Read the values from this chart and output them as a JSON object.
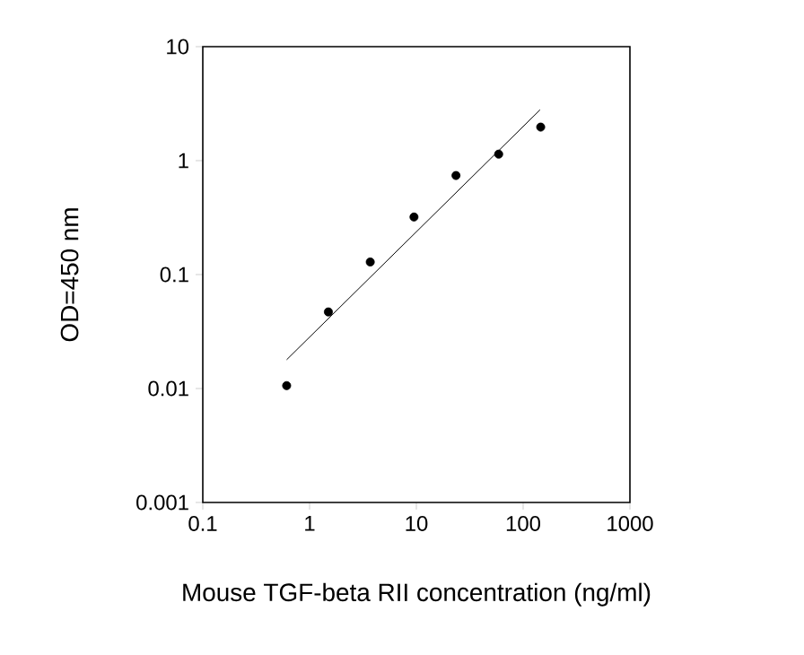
{
  "chart_data": {
    "type": "scatter",
    "xlabel": "Mouse TGF-beta RII concentration (ng/ml)",
    "ylabel": "OD=450 nm",
    "log": "xy",
    "xlim": [
      0.1,
      1000
    ],
    "ylim": [
      0.001,
      10
    ],
    "xticks": [
      0.1,
      1,
      10,
      100,
      1000
    ],
    "yticks": [
      0.001,
      0.01,
      0.1,
      1,
      10
    ],
    "marker": "circle",
    "series": [
      {
        "color": "#000000",
        "x": [
          0.61,
          1.5,
          3.7,
          9.5,
          23.5,
          59,
          146
        ],
        "values": [
          0.0106,
          0.047,
          0.129,
          0.32,
          0.74,
          1.14,
          1.97
        ]
      },
      {
        "type": "line",
        "color": "#000000",
        "marker": "none",
        "line_style": "solid",
        "x": [
          0.61,
          144
        ],
        "values": [
          0.0179,
          2.79
        ]
      }
    ]
  }
}
